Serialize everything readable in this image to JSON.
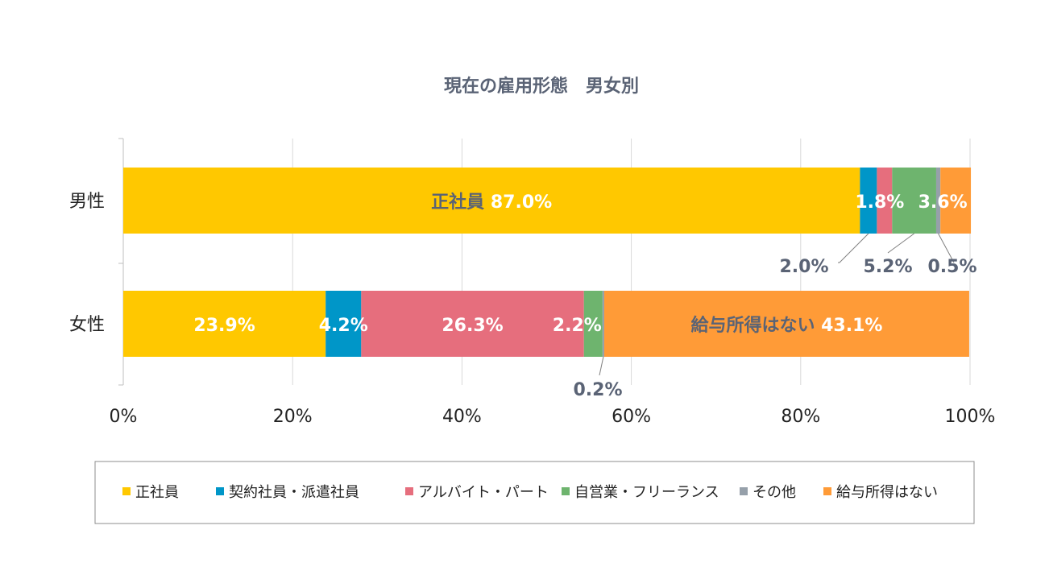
{
  "chart_data": {
    "type": "bar",
    "orientation": "horizontal",
    "stacked": "percent",
    "title": "現在の雇用形態　男女別",
    "categories": [
      "男性",
      "女性"
    ],
    "x_ticks": [
      "0%",
      "20%",
      "40%",
      "60%",
      "80%",
      "100%"
    ],
    "xlim": [
      0,
      100
    ],
    "grid": "vertical",
    "legend_position": "bottom",
    "series": [
      {
        "name": "正社員",
        "color": "#ffc800",
        "values": [
          87.0,
          23.9
        ],
        "labels": [
          "87.0%",
          "23.9%"
        ]
      },
      {
        "name": "契約社員・派遣社員",
        "color": "#0096c8",
        "values": [
          2.0,
          4.2
        ],
        "labels": [
          "2.0%",
          "4.2%"
        ]
      },
      {
        "name": "アルバイト・パート",
        "color": "#e66e7d",
        "values": [
          1.8,
          26.3
        ],
        "labels": [
          "1.8%",
          "26.3%"
        ]
      },
      {
        "name": "自営業・フリーランス",
        "color": "#6eb46e",
        "values": [
          5.2,
          2.2
        ],
        "labels": [
          "5.2%",
          "2.2%"
        ]
      },
      {
        "name": "その他",
        "color": "#96a0aa",
        "values": [
          0.5,
          0.2
        ],
        "labels": [
          "0.5%",
          "0.2%"
        ]
      },
      {
        "name": "給与所得はない",
        "color": "#ff9b37",
        "values": [
          3.6,
          43.1
        ],
        "labels": [
          "3.6%",
          "43.1%"
        ]
      }
    ],
    "annotations": [
      {
        "category": 0,
        "series": 0,
        "prefix": "正社員",
        "placement": "inside"
      },
      {
        "category": 0,
        "series": 1,
        "placement": "callout-below"
      },
      {
        "category": 0,
        "series": 2,
        "placement": "inside"
      },
      {
        "category": 0,
        "series": 3,
        "placement": "callout-below"
      },
      {
        "category": 0,
        "series": 4,
        "placement": "callout-below"
      },
      {
        "category": 0,
        "series": 5,
        "placement": "inside"
      },
      {
        "category": 1,
        "series": 0,
        "placement": "inside"
      },
      {
        "category": 1,
        "series": 1,
        "placement": "inside"
      },
      {
        "category": 1,
        "series": 2,
        "placement": "inside"
      },
      {
        "category": 1,
        "series": 3,
        "placement": "inside"
      },
      {
        "category": 1,
        "series": 4,
        "placement": "callout-below"
      },
      {
        "category": 1,
        "series": 5,
        "prefix": "給与所得はない",
        "placement": "inside"
      }
    ]
  }
}
